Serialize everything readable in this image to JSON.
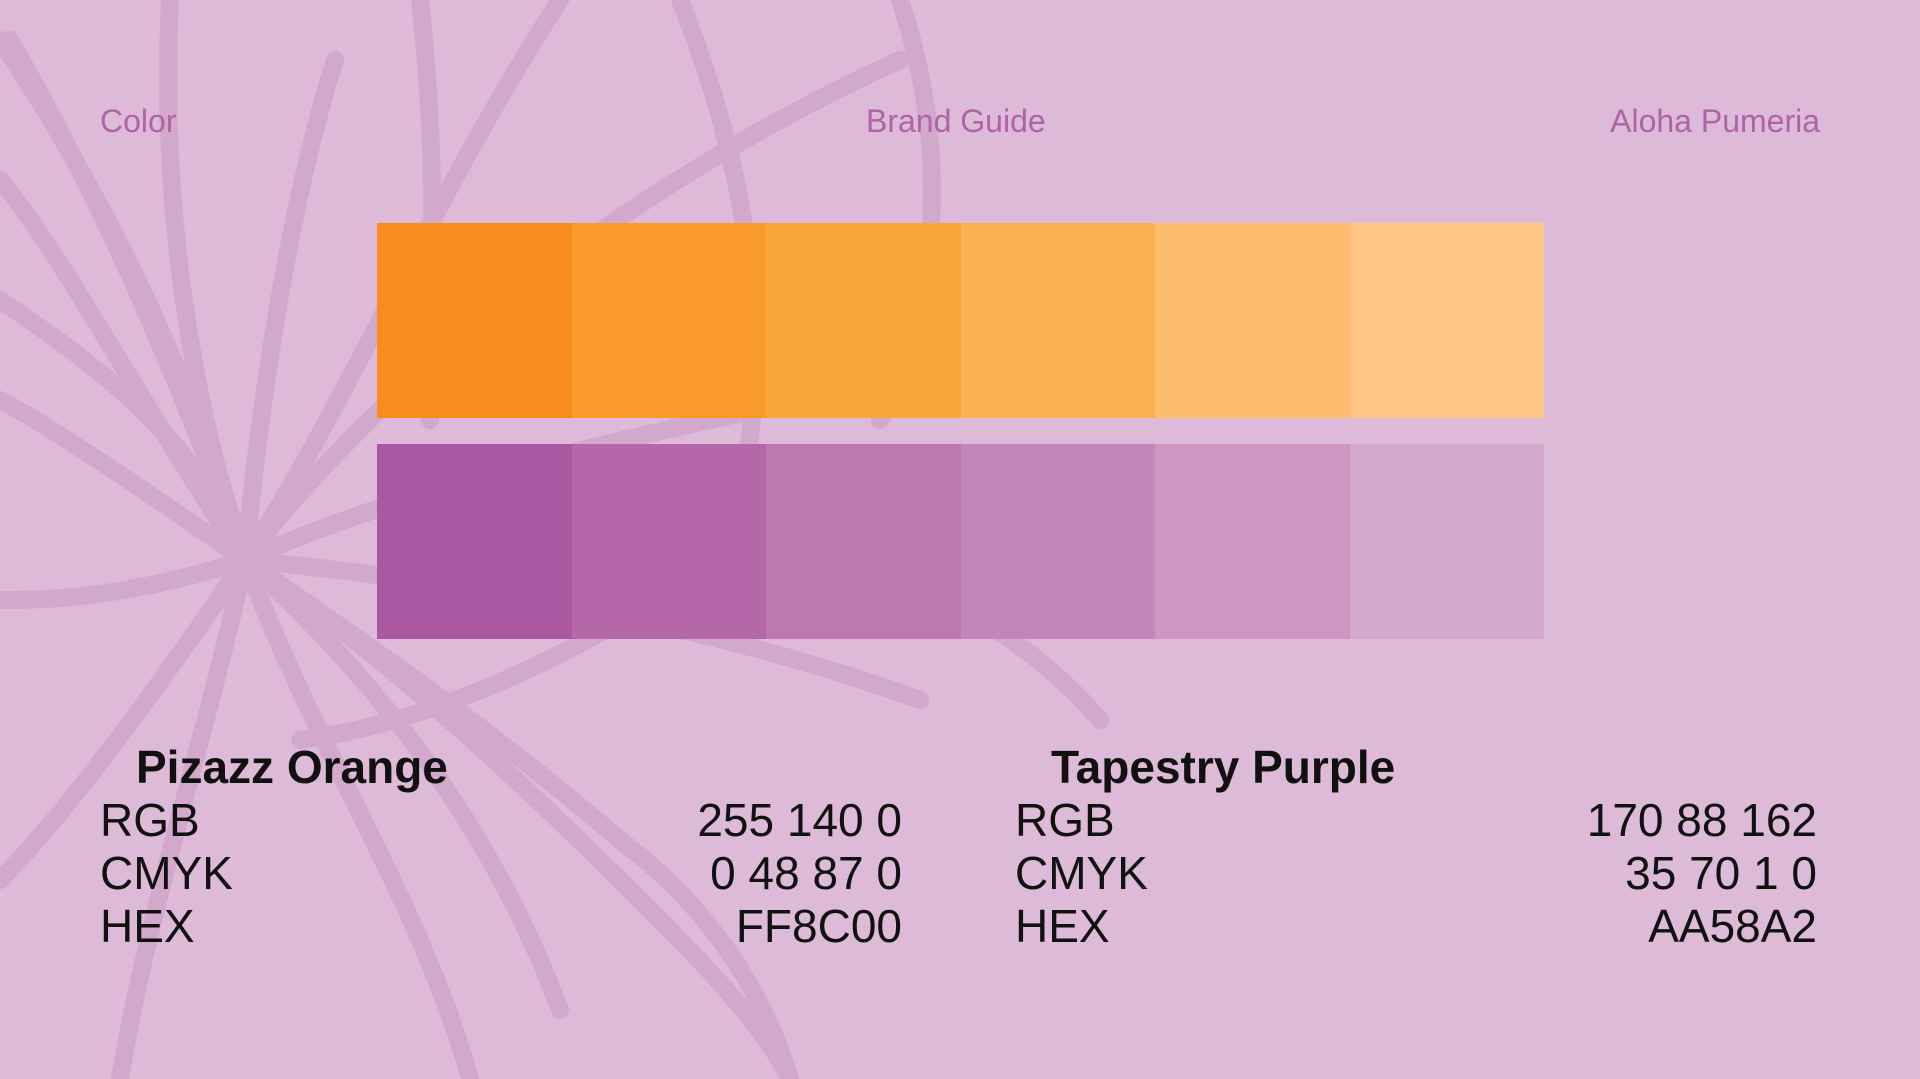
{
  "header": {
    "left": "Color",
    "center": "Brand Guide",
    "right": "Aloha Pumeria"
  },
  "colors": {
    "background": "#ddbad7",
    "flower_stroke": "#d2a9cc",
    "header_text": "#b063a6"
  },
  "swatch_rows": {
    "orange": [
      "#f78d1f",
      "#f99a2a",
      "#faa63d",
      "#fbb152",
      "#fdbd6c",
      "#fec585"
    ],
    "purple": [
      "#aa58a2",
      "#b468aa",
      "#bb78b1",
      "#c386b8",
      "#cd97c2",
      "#d4a8cb"
    ]
  },
  "color_specs": [
    {
      "name": "Pizazz Orange",
      "rows": [
        {
          "label": "RGB",
          "value": "255 140 0"
        },
        {
          "label": "CMYK",
          "value": "0 48 87 0"
        },
        {
          "label": "HEX",
          "value": "FF8C00"
        }
      ]
    },
    {
      "name": "Tapestry Purple",
      "rows": [
        {
          "label": "RGB",
          "value": "170 88 162"
        },
        {
          "label": "CMYK",
          "value": "35 70 1 0"
        },
        {
          "label": "HEX",
          "value": "AA58A2"
        }
      ]
    }
  ],
  "decor": {
    "background_illustration": "plumeria-flower-outline-icon"
  }
}
